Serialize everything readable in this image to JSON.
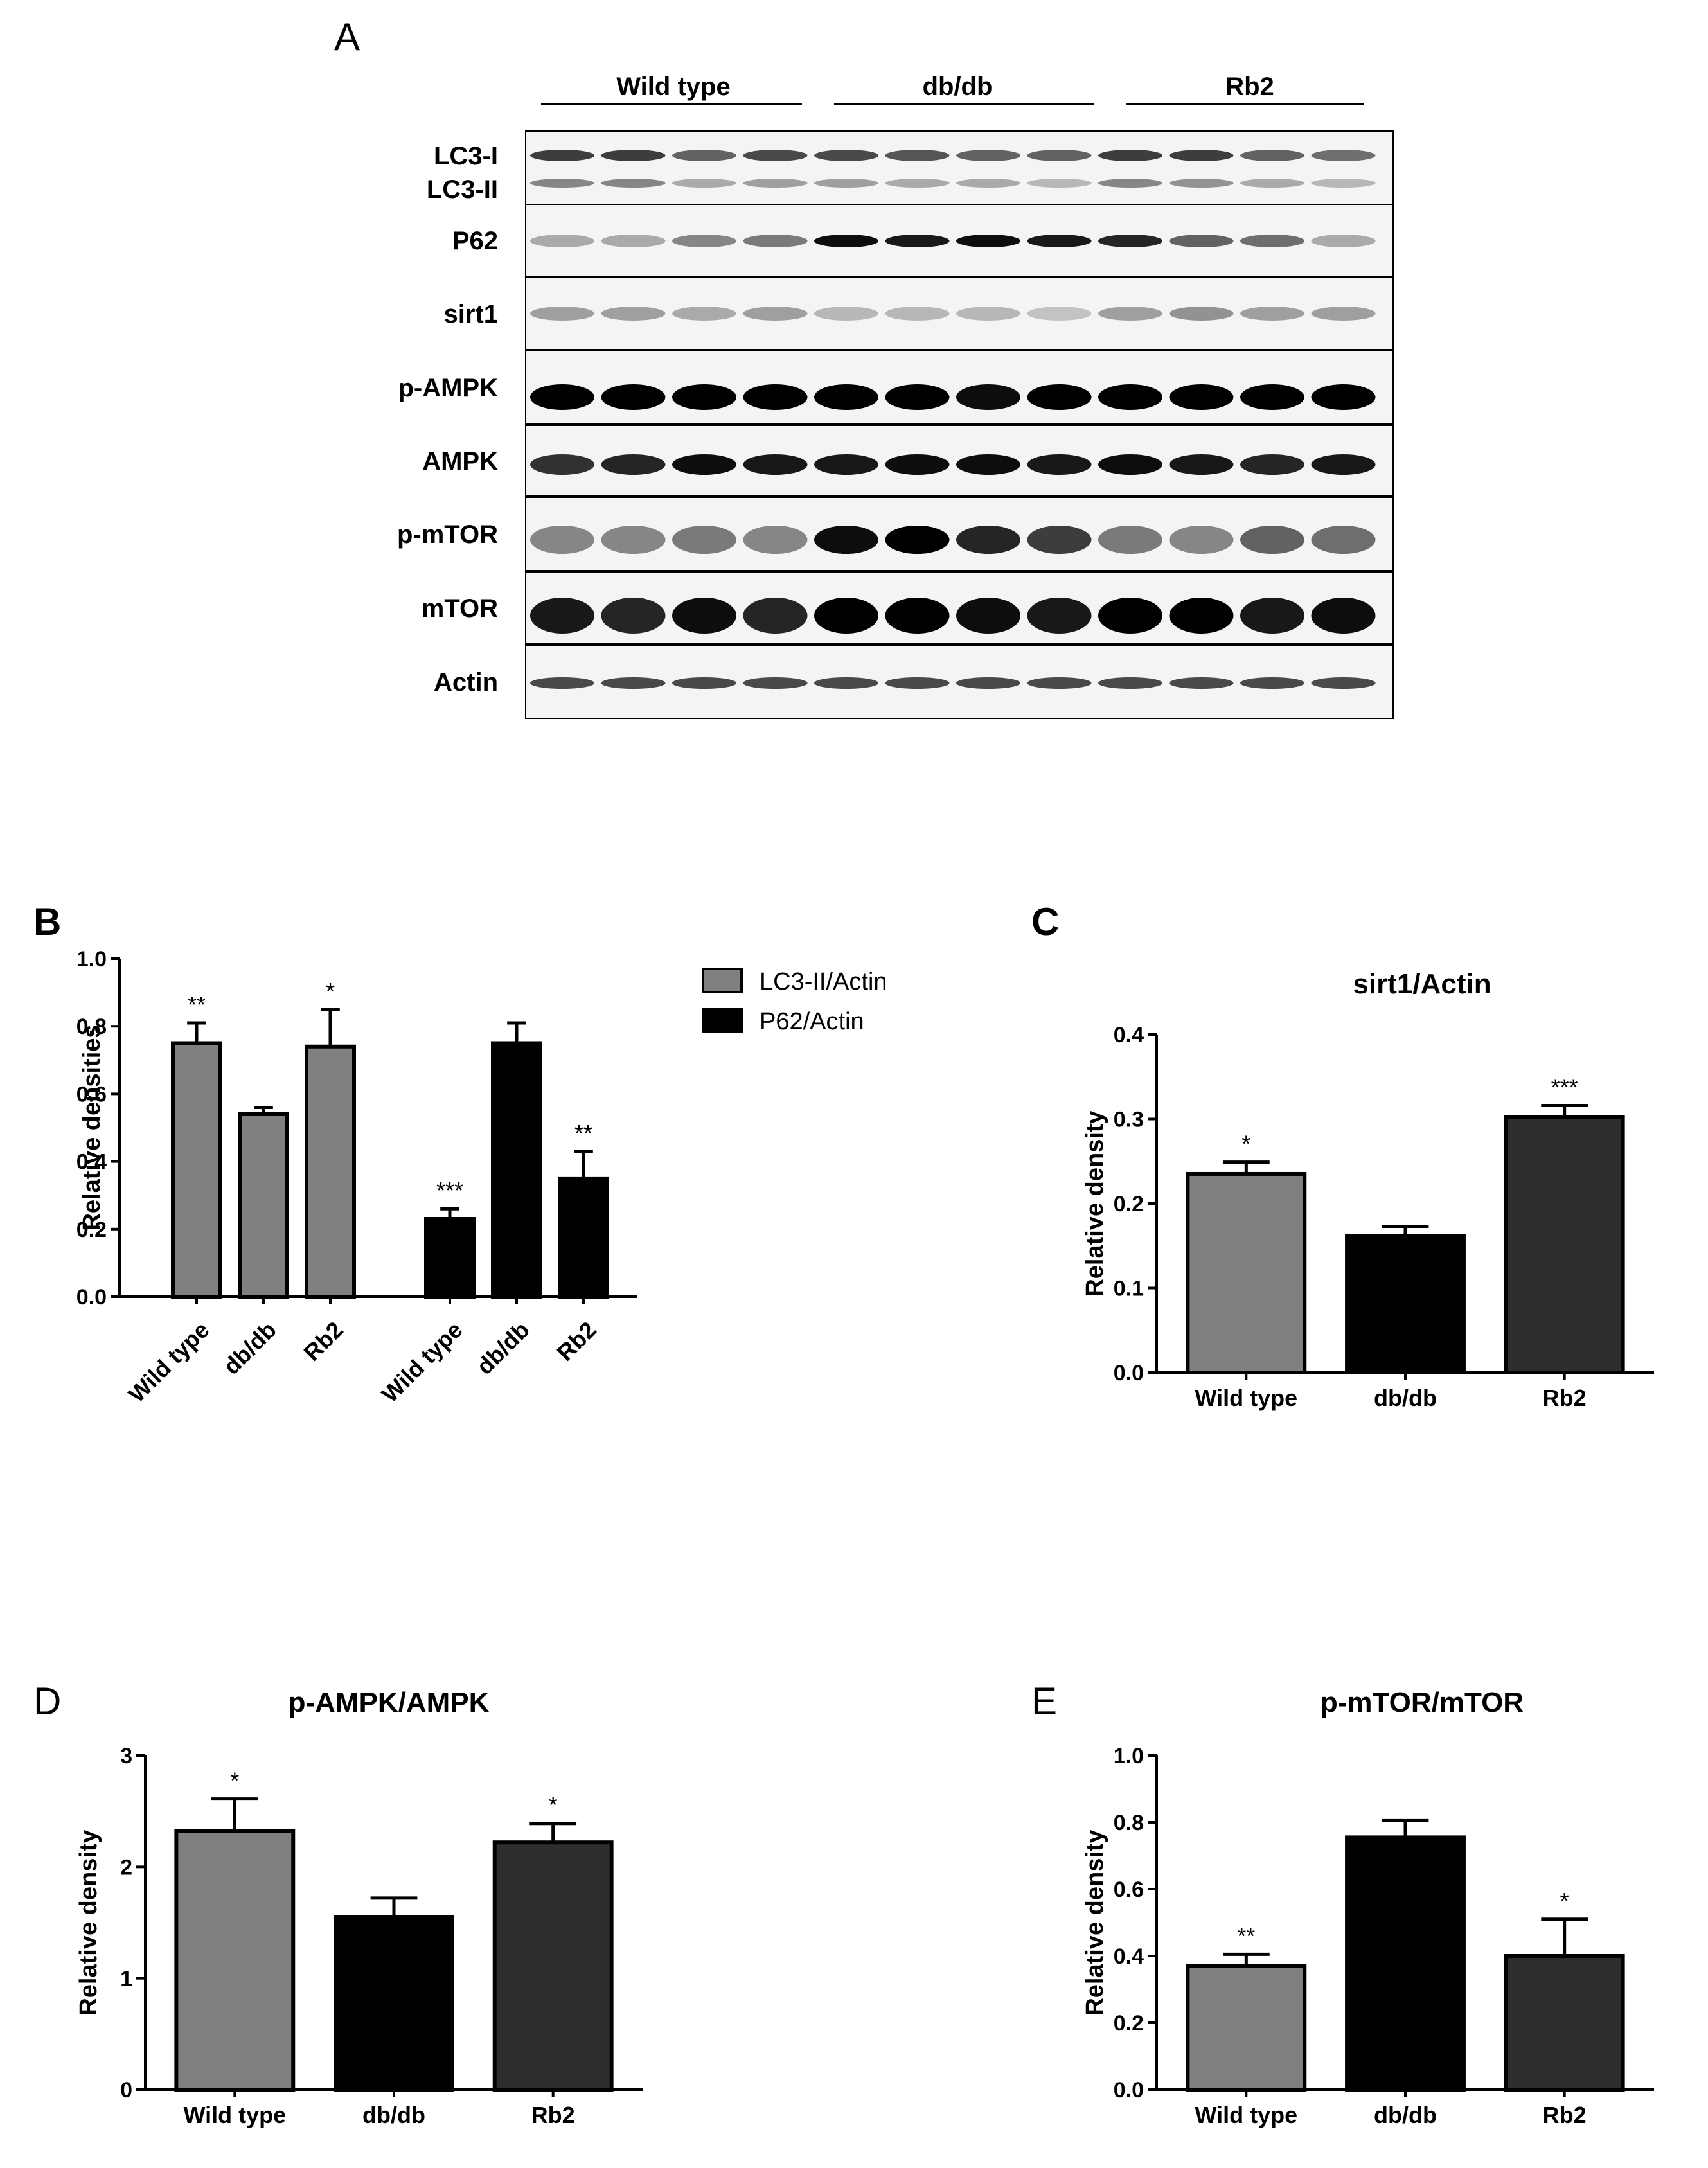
{
  "figure": {
    "panel_letters": {
      "a": "A",
      "b": "B",
      "c": "C",
      "d": "D",
      "e": "E"
    }
  },
  "blot": {
    "groups": [
      "Wild type",
      "db/db",
      "Rb2"
    ],
    "rows": [
      {
        "label": "LC3-I",
        "label2": "LC3-II"
      },
      {
        "label": "P62"
      },
      {
        "label": "sirt1"
      },
      {
        "label": "p-AMPK"
      },
      {
        "label": "AMPK"
      },
      {
        "label": "p-mTOR"
      },
      {
        "label": "mTOR"
      },
      {
        "label": "Actin"
      }
    ]
  },
  "colors": {
    "wild_type": "#808080",
    "dbdb": "#000000",
    "rb2": "#2e2e2e",
    "lc3_series": "#808080",
    "p62_series": "#000000"
  },
  "chart_data": [
    {
      "panel": "B",
      "type": "bar",
      "title": "",
      "ylabel": "Relative densities",
      "ylim": [
        0,
        1.0
      ],
      "yticks": [
        "0.0",
        "0.2",
        "0.4",
        "0.6",
        "0.8",
        "1.0"
      ],
      "categories": [
        "Wild type",
        "db/db",
        "Rb2"
      ],
      "legend_position": "top-right",
      "series": [
        {
          "name": "LC3-II/Actin",
          "values": [
            0.75,
            0.54,
            0.74
          ],
          "errors": [
            0.06,
            0.02,
            0.11
          ],
          "sig": [
            "**",
            "",
            "*"
          ]
        },
        {
          "name": "P62/Actin",
          "values": [
            0.23,
            0.75,
            0.35
          ],
          "errors": [
            0.03,
            0.06,
            0.08
          ],
          "sig": [
            "***",
            "",
            "**"
          ]
        }
      ]
    },
    {
      "panel": "C",
      "type": "bar",
      "title": "sirt1/Actin",
      "ylabel": "Relative density",
      "ylim": [
        0,
        0.4
      ],
      "yticks": [
        "0.0",
        "0.1",
        "0.2",
        "0.3",
        "0.4"
      ],
      "categories": [
        "Wild type",
        "db/db",
        "Rb2"
      ],
      "values": [
        0.235,
        0.162,
        0.302
      ],
      "errors": [
        0.014,
        0.011,
        0.014
      ],
      "sig": [
        "*",
        "",
        "***"
      ]
    },
    {
      "panel": "D",
      "type": "bar",
      "title": "p-AMPK/AMPK",
      "ylabel": "Relative density",
      "ylim": [
        0,
        3
      ],
      "yticks": [
        "0",
        "1",
        "2",
        "3"
      ],
      "categories": [
        "Wild type",
        "db/db",
        "Rb2"
      ],
      "values": [
        2.32,
        1.55,
        2.22
      ],
      "errors": [
        0.29,
        0.17,
        0.17
      ],
      "sig": [
        "*",
        "",
        "*"
      ]
    },
    {
      "panel": "E",
      "type": "bar",
      "title": "p-mTOR/mTOR",
      "ylabel": "Relative density",
      "ylim": [
        0,
        1.0
      ],
      "yticks": [
        "0.0",
        "0.2",
        "0.4",
        "0.6",
        "0.8",
        "1.0"
      ],
      "categories": [
        "Wild type",
        "db/db",
        "Rb2"
      ],
      "values": [
        0.37,
        0.755,
        0.4
      ],
      "errors": [
        0.035,
        0.05,
        0.11
      ],
      "sig": [
        "**",
        "",
        "*"
      ]
    }
  ]
}
